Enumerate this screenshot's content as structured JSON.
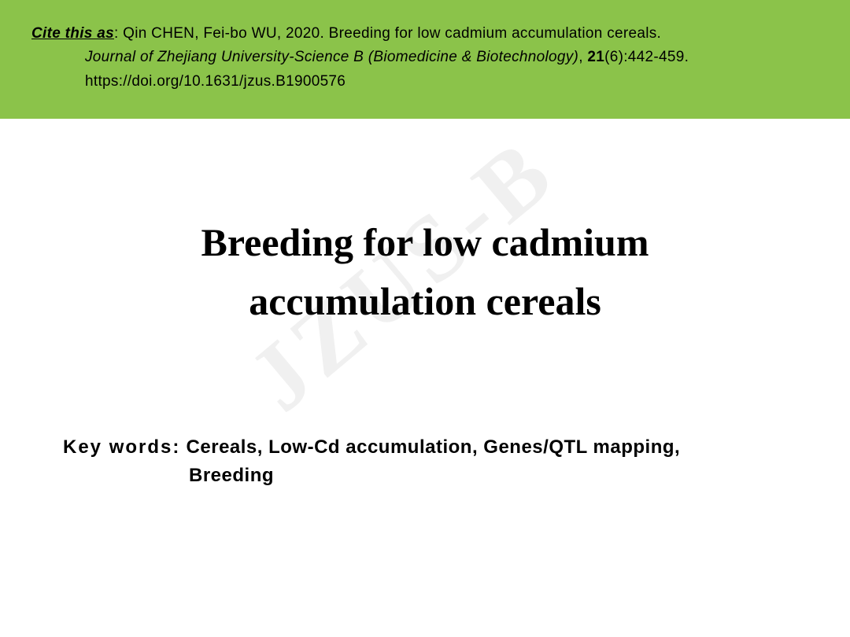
{
  "citation": {
    "label": "Cite this as",
    "authors": ": Qin CHEN, Fei-bo WU, 2020. Breeding for low cadmium accumulation cereals.",
    "journal": "Journal of Zhejiang University-Science B (Biomedicine & Biotechnology)",
    "punctuation": ", ",
    "volume": "21",
    "issue_pages": "(6):442-459.",
    "doi": "https://doi.org/10.1631/jzus.B1900576",
    "box_background": "#8bc34a"
  },
  "watermark": {
    "text": "JZUS-B",
    "color": "rgba(0,0,0,0.06)"
  },
  "title": {
    "line1": "Breeding for low cadmium",
    "line2": "accumulation cereals"
  },
  "keywords": {
    "label": "Key words:",
    "line1": " Cereals, Low-Cd accumulation, Genes/QTL mapping,",
    "line2": "Breeding"
  },
  "colors": {
    "background": "#ffffff",
    "text": "#000000"
  }
}
